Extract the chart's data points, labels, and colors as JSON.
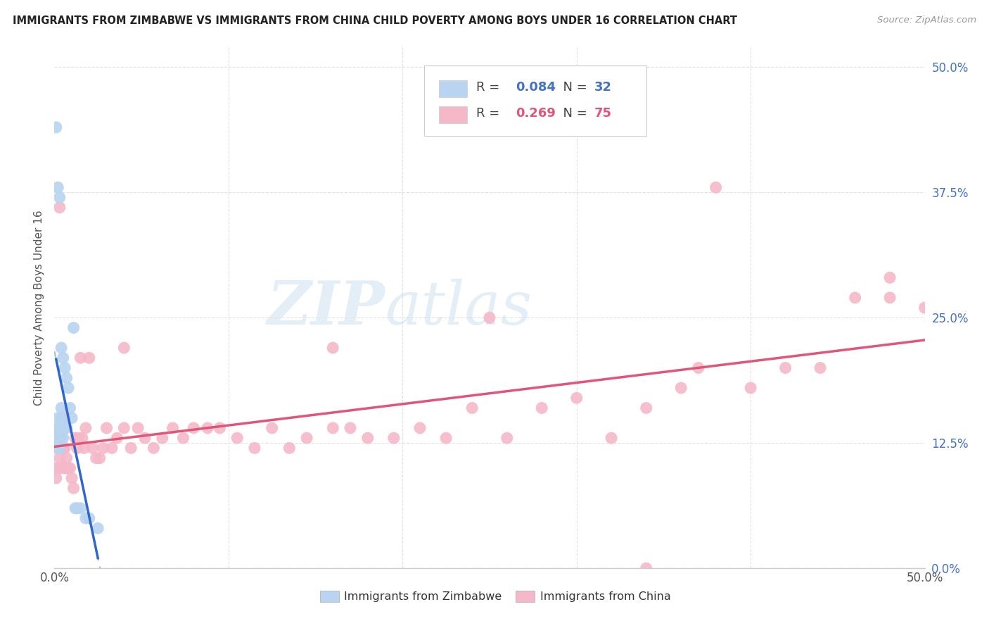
{
  "title": "IMMIGRANTS FROM ZIMBABWE VS IMMIGRANTS FROM CHINA CHILD POVERTY AMONG BOYS UNDER 16 CORRELATION CHART",
  "source": "Source: ZipAtlas.com",
  "ylabel": "Child Poverty Among Boys Under 16",
  "xlim": [
    0,
    0.5
  ],
  "ylim": [
    0,
    0.52
  ],
  "ytick_positions": [
    0.0,
    0.125,
    0.25,
    0.375,
    0.5
  ],
  "ytick_labels_right": [
    "0.0%",
    "12.5%",
    "25.0%",
    "37.5%",
    "50.0%"
  ],
  "watermark_zip": "ZIP",
  "watermark_atlas": "atlas",
  "background_color": "#ffffff",
  "grid_color": "#e0e0e0",
  "zimbabwe_color": "#b8d4f0",
  "china_color": "#f5b8c8",
  "zimbabwe_line_color": "#3366cc",
  "china_line_color": "#e05578",
  "zimbabwe_dash_color": "#a0c0e8",
  "R_zimbabwe": 0.084,
  "N_zimbabwe": 32,
  "R_china": 0.269,
  "N_china": 75,
  "zimbabwe_x": [
    0.001,
    0.001,
    0.001,
    0.002,
    0.002,
    0.002,
    0.002,
    0.003,
    0.003,
    0.003,
    0.003,
    0.004,
    0.004,
    0.004,
    0.004,
    0.005,
    0.005,
    0.005,
    0.006,
    0.006,
    0.007,
    0.007,
    0.008,
    0.009,
    0.01,
    0.011,
    0.012,
    0.013,
    0.015,
    0.018,
    0.02,
    0.025
  ],
  "zimbabwe_y": [
    0.44,
    0.13,
    0.12,
    0.38,
    0.15,
    0.14,
    0.13,
    0.37,
    0.14,
    0.13,
    0.12,
    0.22,
    0.16,
    0.15,
    0.13,
    0.21,
    0.14,
    0.13,
    0.2,
    0.14,
    0.19,
    0.14,
    0.18,
    0.16,
    0.15,
    0.24,
    0.06,
    0.06,
    0.06,
    0.05,
    0.05,
    0.04
  ],
  "china_x": [
    0.001,
    0.001,
    0.002,
    0.002,
    0.003,
    0.003,
    0.004,
    0.004,
    0.005,
    0.005,
    0.006,
    0.006,
    0.007,
    0.007,
    0.008,
    0.009,
    0.01,
    0.011,
    0.012,
    0.013,
    0.014,
    0.015,
    0.016,
    0.017,
    0.018,
    0.02,
    0.022,
    0.024,
    0.026,
    0.028,
    0.03,
    0.033,
    0.036,
    0.04,
    0.044,
    0.048,
    0.052,
    0.057,
    0.062,
    0.068,
    0.074,
    0.08,
    0.088,
    0.095,
    0.105,
    0.115,
    0.125,
    0.135,
    0.145,
    0.16,
    0.17,
    0.18,
    0.195,
    0.21,
    0.225,
    0.24,
    0.26,
    0.28,
    0.3,
    0.32,
    0.34,
    0.36,
    0.38,
    0.4,
    0.42,
    0.44,
    0.46,
    0.48,
    0.5,
    0.34,
    0.16,
    0.04,
    0.25,
    0.48,
    0.37
  ],
  "china_y": [
    0.1,
    0.09,
    0.12,
    0.1,
    0.36,
    0.11,
    0.13,
    0.1,
    0.15,
    0.12,
    0.12,
    0.1,
    0.11,
    0.1,
    0.1,
    0.1,
    0.09,
    0.08,
    0.13,
    0.12,
    0.13,
    0.21,
    0.13,
    0.12,
    0.14,
    0.21,
    0.12,
    0.11,
    0.11,
    0.12,
    0.14,
    0.12,
    0.13,
    0.14,
    0.12,
    0.14,
    0.13,
    0.12,
    0.13,
    0.14,
    0.13,
    0.14,
    0.14,
    0.14,
    0.13,
    0.12,
    0.14,
    0.12,
    0.13,
    0.14,
    0.14,
    0.13,
    0.13,
    0.14,
    0.13,
    0.16,
    0.13,
    0.16,
    0.17,
    0.13,
    0.16,
    0.18,
    0.38,
    0.18,
    0.2,
    0.2,
    0.27,
    0.29,
    0.26,
    0.0,
    0.22,
    0.22,
    0.25,
    0.27,
    0.2
  ]
}
